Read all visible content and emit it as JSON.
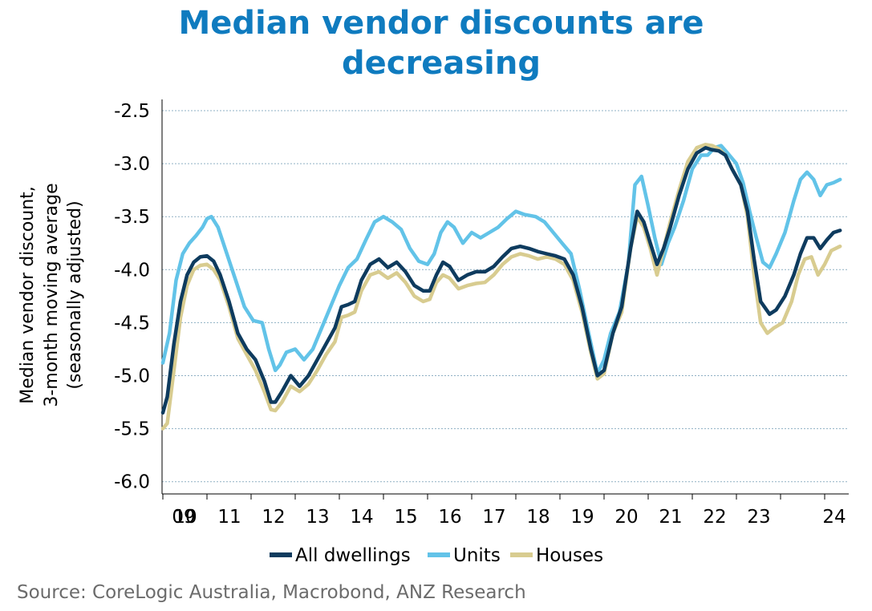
{
  "chart_data": {
    "type": "line",
    "title_line1": "Median vendor discounts are",
    "title_line2": "decreasing",
    "ylabel_line1": "Median vendor discount,",
    "ylabel_line2": "3-month moving average",
    "ylabel_line3": "(seasonally adjusted)",
    "source": "Source: CoreLogic Australia, Macrobond, ANZ Research",
    "ylim": [
      -6.0,
      -2.5
    ],
    "yticks": [
      "-2.5",
      "-3.0",
      "-3.5",
      "-4.0",
      "-4.5",
      "-5.0",
      "-5.5",
      "-6.0"
    ],
    "xticks": [
      "09",
      "10",
      "11",
      "12",
      "13",
      "14",
      "15",
      "16",
      "17",
      "18",
      "19",
      "20",
      "21",
      "22",
      "23",
      "24"
    ],
    "grid": "horizontal dotted",
    "legend_position": "bottom",
    "series": [
      {
        "name": "All dwellings",
        "color": "#0e3b5e",
        "points": [
          [
            2009.0,
            -5.35
          ],
          [
            2009.1,
            -5.2
          ],
          [
            2009.25,
            -4.7
          ],
          [
            2009.4,
            -4.3
          ],
          [
            2009.55,
            -4.05
          ],
          [
            2009.7,
            -3.93
          ],
          [
            2009.85,
            -3.88
          ],
          [
            2010.0,
            -3.87
          ],
          [
            2010.15,
            -3.92
          ],
          [
            2010.3,
            -4.05
          ],
          [
            2010.5,
            -4.3
          ],
          [
            2010.7,
            -4.6
          ],
          [
            2010.9,
            -4.75
          ],
          [
            2011.1,
            -4.85
          ],
          [
            2011.3,
            -5.05
          ],
          [
            2011.45,
            -5.25
          ],
          [
            2011.55,
            -5.25
          ],
          [
            2011.7,
            -5.15
          ],
          [
            2011.9,
            -5.0
          ],
          [
            2012.1,
            -5.1
          ],
          [
            2012.3,
            -5.0
          ],
          [
            2012.5,
            -4.85
          ],
          [
            2012.7,
            -4.7
          ],
          [
            2012.9,
            -4.55
          ],
          [
            2013.05,
            -4.35
          ],
          [
            2013.2,
            -4.33
          ],
          [
            2013.35,
            -4.3
          ],
          [
            2013.5,
            -4.1
          ],
          [
            2013.7,
            -3.95
          ],
          [
            2013.9,
            -3.9
          ],
          [
            2014.1,
            -3.98
          ],
          [
            2014.3,
            -3.93
          ],
          [
            2014.5,
            -4.02
          ],
          [
            2014.7,
            -4.15
          ],
          [
            2014.9,
            -4.2
          ],
          [
            2015.05,
            -4.2
          ],
          [
            2015.2,
            -4.05
          ],
          [
            2015.35,
            -3.93
          ],
          [
            2015.5,
            -3.97
          ],
          [
            2015.7,
            -4.1
          ],
          [
            2015.9,
            -4.05
          ],
          [
            2016.1,
            -4.02
          ],
          [
            2016.3,
            -4.02
          ],
          [
            2016.5,
            -3.97
          ],
          [
            2016.7,
            -3.88
          ],
          [
            2016.9,
            -3.8
          ],
          [
            2017.1,
            -3.78
          ],
          [
            2017.3,
            -3.8
          ],
          [
            2017.5,
            -3.83
          ],
          [
            2017.7,
            -3.85
          ],
          [
            2017.9,
            -3.87
          ],
          [
            2018.1,
            -3.9
          ],
          [
            2018.3,
            -4.05
          ],
          [
            2018.5,
            -4.35
          ],
          [
            2018.7,
            -4.75
          ],
          [
            2018.85,
            -5.0
          ],
          [
            2019.0,
            -4.95
          ],
          [
            2019.2,
            -4.6
          ],
          [
            2019.4,
            -4.35
          ],
          [
            2019.6,
            -3.8
          ],
          [
            2019.75,
            -3.45
          ],
          [
            2019.9,
            -3.55
          ],
          [
            2020.05,
            -3.75
          ],
          [
            2020.2,
            -3.95
          ],
          [
            2020.35,
            -3.8
          ],
          [
            2020.5,
            -3.6
          ],
          [
            2020.7,
            -3.3
          ],
          [
            2020.9,
            -3.05
          ],
          [
            2021.1,
            -2.9
          ],
          [
            2021.3,
            -2.85
          ],
          [
            2021.45,
            -2.87
          ],
          [
            2021.6,
            -2.88
          ],
          [
            2021.75,
            -2.92
          ],
          [
            2021.9,
            -3.05
          ],
          [
            2022.1,
            -3.2
          ],
          [
            2022.25,
            -3.45
          ],
          [
            2022.4,
            -3.9
          ],
          [
            2022.55,
            -4.3
          ],
          [
            2022.75,
            -4.42
          ],
          [
            2022.9,
            -4.38
          ],
          [
            2023.1,
            -4.25
          ],
          [
            2023.3,
            -4.05
          ],
          [
            2023.45,
            -3.85
          ],
          [
            2023.6,
            -3.7
          ],
          [
            2023.75,
            -3.7
          ],
          [
            2023.9,
            -3.8
          ],
          [
            2024.05,
            -3.72
          ],
          [
            2024.2,
            -3.65
          ],
          [
            2024.35,
            -3.63
          ]
        ]
      },
      {
        "name": "Units",
        "color": "#62c3e8",
        "points": [
          [
            2009.0,
            -4.88
          ],
          [
            2009.15,
            -4.6
          ],
          [
            2009.3,
            -4.1
          ],
          [
            2009.45,
            -3.85
          ],
          [
            2009.6,
            -3.75
          ],
          [
            2009.75,
            -3.68
          ],
          [
            2009.9,
            -3.6
          ],
          [
            2010.0,
            -3.52
          ],
          [
            2010.1,
            -3.5
          ],
          [
            2010.25,
            -3.6
          ],
          [
            2010.45,
            -3.85
          ],
          [
            2010.65,
            -4.1
          ],
          [
            2010.85,
            -4.35
          ],
          [
            2011.05,
            -4.48
          ],
          [
            2011.25,
            -4.5
          ],
          [
            2011.4,
            -4.75
          ],
          [
            2011.55,
            -4.95
          ],
          [
            2011.65,
            -4.9
          ],
          [
            2011.8,
            -4.78
          ],
          [
            2012.0,
            -4.75
          ],
          [
            2012.2,
            -4.85
          ],
          [
            2012.4,
            -4.75
          ],
          [
            2012.6,
            -4.55
          ],
          [
            2012.8,
            -4.35
          ],
          [
            2013.0,
            -4.15
          ],
          [
            2013.2,
            -3.98
          ],
          [
            2013.4,
            -3.9
          ],
          [
            2013.6,
            -3.72
          ],
          [
            2013.8,
            -3.55
          ],
          [
            2014.0,
            -3.5
          ],
          [
            2014.2,
            -3.55
          ],
          [
            2014.4,
            -3.62
          ],
          [
            2014.6,
            -3.8
          ],
          [
            2014.8,
            -3.92
          ],
          [
            2015.0,
            -3.95
          ],
          [
            2015.15,
            -3.85
          ],
          [
            2015.3,
            -3.65
          ],
          [
            2015.45,
            -3.55
          ],
          [
            2015.6,
            -3.6
          ],
          [
            2015.8,
            -3.75
          ],
          [
            2016.0,
            -3.65
          ],
          [
            2016.2,
            -3.7
          ],
          [
            2016.4,
            -3.65
          ],
          [
            2016.6,
            -3.6
          ],
          [
            2016.8,
            -3.52
          ],
          [
            2017.0,
            -3.45
          ],
          [
            2017.2,
            -3.48
          ],
          [
            2017.45,
            -3.5
          ],
          [
            2017.65,
            -3.55
          ],
          [
            2017.85,
            -3.65
          ],
          [
            2018.05,
            -3.75
          ],
          [
            2018.25,
            -3.85
          ],
          [
            2018.45,
            -4.2
          ],
          [
            2018.65,
            -4.6
          ],
          [
            2018.85,
            -4.98
          ],
          [
            2019.0,
            -4.85
          ],
          [
            2019.15,
            -4.6
          ],
          [
            2019.35,
            -4.4
          ],
          [
            2019.55,
            -3.95
          ],
          [
            2019.7,
            -3.2
          ],
          [
            2019.85,
            -3.12
          ],
          [
            2020.0,
            -3.4
          ],
          [
            2020.15,
            -3.7
          ],
          [
            2020.3,
            -3.95
          ],
          [
            2020.45,
            -3.75
          ],
          [
            2020.6,
            -3.6
          ],
          [
            2020.8,
            -3.35
          ],
          [
            2021.0,
            -3.05
          ],
          [
            2021.2,
            -2.92
          ],
          [
            2021.35,
            -2.92
          ],
          [
            2021.5,
            -2.85
          ],
          [
            2021.65,
            -2.83
          ],
          [
            2021.8,
            -2.9
          ],
          [
            2022.0,
            -3.0
          ],
          [
            2022.15,
            -3.18
          ],
          [
            2022.3,
            -3.45
          ],
          [
            2022.45,
            -3.7
          ],
          [
            2022.6,
            -3.93
          ],
          [
            2022.75,
            -3.98
          ],
          [
            2022.9,
            -3.85
          ],
          [
            2023.1,
            -3.65
          ],
          [
            2023.3,
            -3.35
          ],
          [
            2023.45,
            -3.15
          ],
          [
            2023.6,
            -3.08
          ],
          [
            2023.75,
            -3.15
          ],
          [
            2023.9,
            -3.3
          ],
          [
            2024.05,
            -3.2
          ],
          [
            2024.2,
            -3.18
          ],
          [
            2024.35,
            -3.15
          ]
        ]
      },
      {
        "name": "Houses",
        "color": "#d8cc90",
        "points": [
          [
            2009.0,
            -5.5
          ],
          [
            2009.1,
            -5.45
          ],
          [
            2009.25,
            -4.95
          ],
          [
            2009.4,
            -4.45
          ],
          [
            2009.55,
            -4.15
          ],
          [
            2009.7,
            -4.0
          ],
          [
            2009.85,
            -3.96
          ],
          [
            2010.0,
            -3.95
          ],
          [
            2010.15,
            -4.0
          ],
          [
            2010.3,
            -4.1
          ],
          [
            2010.5,
            -4.35
          ],
          [
            2010.7,
            -4.65
          ],
          [
            2010.9,
            -4.8
          ],
          [
            2011.1,
            -4.95
          ],
          [
            2011.3,
            -5.15
          ],
          [
            2011.45,
            -5.32
          ],
          [
            2011.55,
            -5.33
          ],
          [
            2011.7,
            -5.25
          ],
          [
            2011.9,
            -5.1
          ],
          [
            2012.1,
            -5.15
          ],
          [
            2012.3,
            -5.08
          ],
          [
            2012.5,
            -4.95
          ],
          [
            2012.7,
            -4.8
          ],
          [
            2012.9,
            -4.68
          ],
          [
            2013.05,
            -4.45
          ],
          [
            2013.2,
            -4.43
          ],
          [
            2013.35,
            -4.4
          ],
          [
            2013.5,
            -4.2
          ],
          [
            2013.7,
            -4.05
          ],
          [
            2013.9,
            -4.02
          ],
          [
            2014.1,
            -4.08
          ],
          [
            2014.3,
            -4.03
          ],
          [
            2014.5,
            -4.12
          ],
          [
            2014.7,
            -4.25
          ],
          [
            2014.9,
            -4.3
          ],
          [
            2015.05,
            -4.28
          ],
          [
            2015.2,
            -4.12
          ],
          [
            2015.35,
            -4.05
          ],
          [
            2015.5,
            -4.08
          ],
          [
            2015.7,
            -4.18
          ],
          [
            2015.9,
            -4.15
          ],
          [
            2016.1,
            -4.13
          ],
          [
            2016.3,
            -4.12
          ],
          [
            2016.5,
            -4.05
          ],
          [
            2016.7,
            -3.95
          ],
          [
            2016.9,
            -3.88
          ],
          [
            2017.1,
            -3.85
          ],
          [
            2017.3,
            -3.87
          ],
          [
            2017.5,
            -3.9
          ],
          [
            2017.7,
            -3.88
          ],
          [
            2017.9,
            -3.9
          ],
          [
            2018.1,
            -3.95
          ],
          [
            2018.3,
            -4.1
          ],
          [
            2018.5,
            -4.4
          ],
          [
            2018.7,
            -4.78
          ],
          [
            2018.85,
            -5.03
          ],
          [
            2019.0,
            -4.98
          ],
          [
            2019.2,
            -4.6
          ],
          [
            2019.4,
            -4.4
          ],
          [
            2019.6,
            -3.8
          ],
          [
            2019.75,
            -3.5
          ],
          [
            2019.9,
            -3.6
          ],
          [
            2020.05,
            -3.8
          ],
          [
            2020.2,
            -4.05
          ],
          [
            2020.35,
            -3.8
          ],
          [
            2020.5,
            -3.55
          ],
          [
            2020.7,
            -3.25
          ],
          [
            2020.9,
            -2.98
          ],
          [
            2021.1,
            -2.85
          ],
          [
            2021.3,
            -2.82
          ],
          [
            2021.45,
            -2.83
          ],
          [
            2021.6,
            -2.86
          ],
          [
            2021.75,
            -2.92
          ],
          [
            2021.9,
            -3.05
          ],
          [
            2022.1,
            -3.2
          ],
          [
            2022.25,
            -3.5
          ],
          [
            2022.4,
            -4.05
          ],
          [
            2022.55,
            -4.5
          ],
          [
            2022.7,
            -4.6
          ],
          [
            2022.85,
            -4.55
          ],
          [
            2023.05,
            -4.5
          ],
          [
            2023.25,
            -4.3
          ],
          [
            2023.4,
            -4.05
          ],
          [
            2023.55,
            -3.9
          ],
          [
            2023.7,
            -3.88
          ],
          [
            2023.85,
            -4.05
          ],
          [
            2024.0,
            -3.95
          ],
          [
            2024.15,
            -3.82
          ],
          [
            2024.35,
            -3.78
          ]
        ]
      }
    ]
  }
}
